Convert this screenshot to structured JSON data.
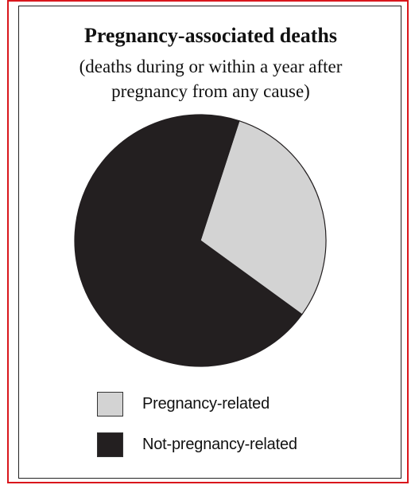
{
  "chart_data": {
    "type": "pie",
    "title": "Pregnancy-associated deaths",
    "subtitle_lines": [
      "(deaths during or within a year after",
      "pregnancy from any cause)"
    ],
    "slices": [
      {
        "name": "Pregnancy-related",
        "value": 30,
        "color": "#d3d3d3"
      },
      {
        "name": "Not-pregnancy-related",
        "value": 70,
        "color": "#231f20"
      }
    ],
    "legend": {
      "placement": "bottom",
      "entries": [
        "Pregnancy-related",
        "Not-pregnancy-related"
      ]
    }
  },
  "colors": {
    "outer_border": "#d9161c",
    "inner_border": "#222222"
  }
}
